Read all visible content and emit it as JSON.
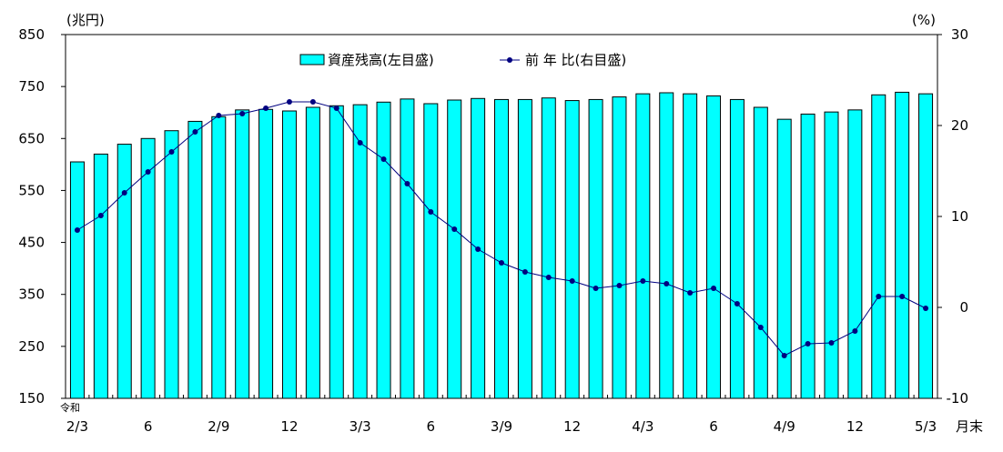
{
  "chart_data": {
    "type": "bar+line",
    "left_unit": "(兆円)",
    "right_unit": "(%)",
    "x_suffix": "月末",
    "era_label": "令和",
    "left_axis": {
      "min": 150,
      "max": 850,
      "ticks": [
        150,
        250,
        350,
        450,
        550,
        650,
        750,
        850
      ]
    },
    "right_axis": {
      "min": -10,
      "max": 30,
      "ticks": [
        -10,
        0,
        10,
        20,
        30
      ]
    },
    "x_labels": [
      {
        "index": 0,
        "label": "2/3"
      },
      {
        "index": 3,
        "label": "6"
      },
      {
        "index": 6,
        "label": "2/9"
      },
      {
        "index": 9,
        "label": "12"
      },
      {
        "index": 12,
        "label": "3/3"
      },
      {
        "index": 15,
        "label": "6"
      },
      {
        "index": 18,
        "label": "3/9"
      },
      {
        "index": 21,
        "label": "12"
      },
      {
        "index": 24,
        "label": "4/3"
      },
      {
        "index": 27,
        "label": "6"
      },
      {
        "index": 30,
        "label": "4/9"
      },
      {
        "index": 33,
        "label": "12"
      },
      {
        "index": 36,
        "label": "5/3"
      }
    ],
    "series": [
      {
        "name": "資産残高(左目盛)",
        "kind": "bar",
        "axis": "left",
        "color": "#00FFFF",
        "values": [
          605,
          620,
          639,
          650,
          665,
          683,
          692,
          705,
          706,
          703,
          710,
          713,
          715,
          720,
          726,
          717,
          724,
          727,
          725,
          725,
          728,
          723,
          725,
          730,
          736,
          738,
          736,
          732,
          725,
          710,
          687,
          697,
          701,
          705,
          734,
          739,
          736
        ]
      },
      {
        "name": "前 年 比(右目盛)",
        "kind": "line",
        "axis": "right",
        "color": "#000080",
        "values": [
          8.5,
          10.1,
          12.6,
          14.9,
          17.1,
          19.3,
          21.1,
          21.3,
          21.9,
          22.6,
          22.6,
          21.9,
          18.1,
          16.3,
          13.6,
          10.5,
          8.6,
          6.4,
          4.9,
          3.9,
          3.3,
          2.9,
          2.1,
          2.4,
          2.9,
          2.6,
          1.6,
          2.1,
          0.4,
          -2.2,
          -5.3,
          -4.0,
          -3.9,
          -2.6,
          1.2,
          1.2,
          -0.1
        ]
      }
    ]
  }
}
